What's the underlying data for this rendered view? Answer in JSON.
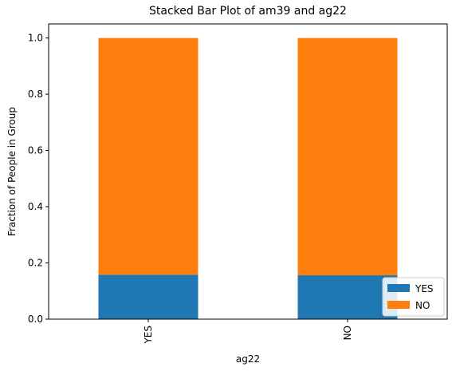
{
  "chart_data": {
    "type": "bar",
    "stacked": true,
    "title": "Stacked Bar Plot of am39 and ag22",
    "xlabel": "ag22",
    "ylabel": "Fraction of People in Group",
    "categories": [
      "YES",
      "NO"
    ],
    "series": [
      {
        "name": "YES",
        "color": "#1f77b4",
        "values": [
          0.158,
          0.156
        ]
      },
      {
        "name": "NO",
        "color": "#ff7f0e",
        "values": [
          0.842,
          0.844
        ]
      }
    ],
    "ylim": [
      0,
      1.05
    ],
    "yticks": [
      "0.0",
      "0.2",
      "0.4",
      "0.6",
      "0.8",
      "1.0"
    ],
    "grid": false,
    "legend_placement": "lower-right"
  }
}
